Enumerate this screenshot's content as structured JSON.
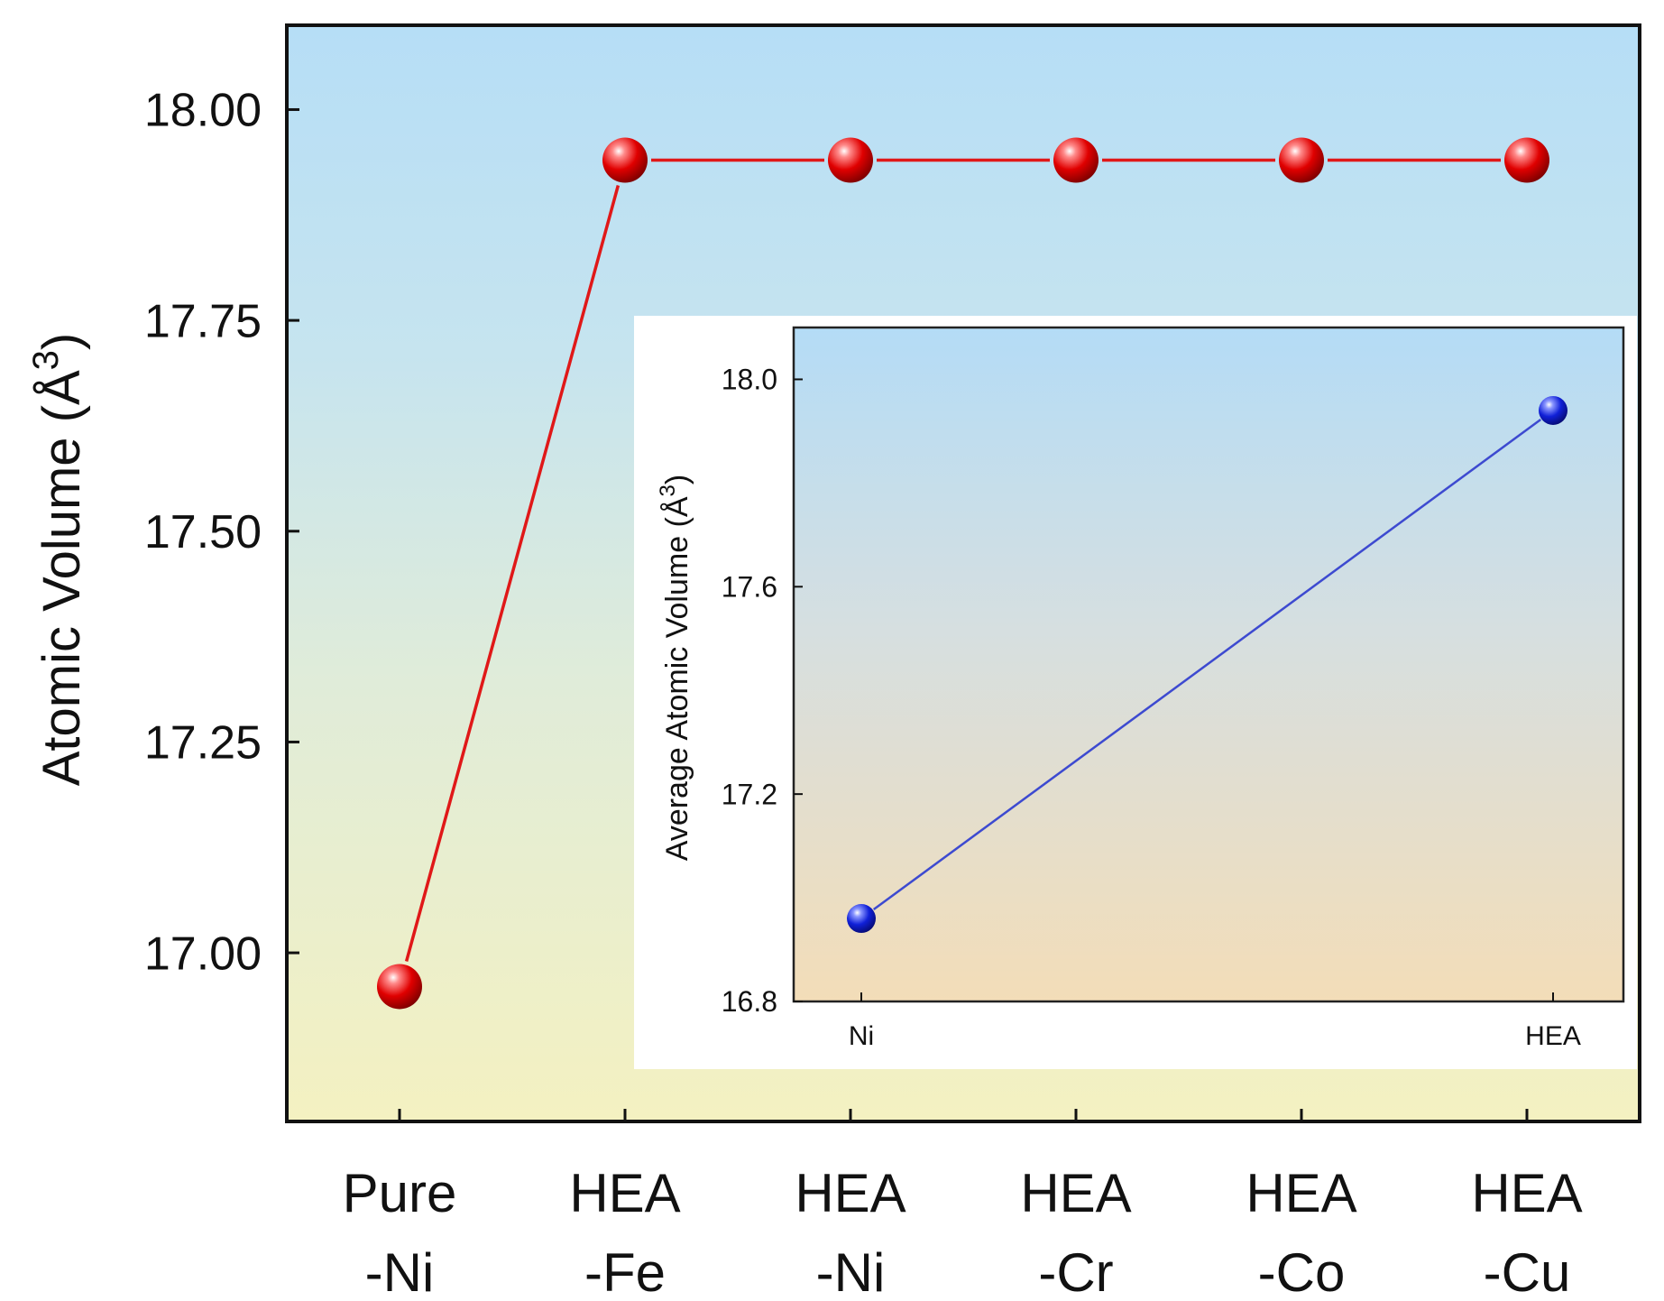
{
  "chart_data": [
    {
      "type": "line",
      "title": "",
      "xlabel": "",
      "ylabel": "Atomic Volume (Å",
      "ylabel_superscript": "3",
      "ylabel_suffix": ")",
      "categories": [
        [
          "Pure",
          "-Ni"
        ],
        [
          "HEA",
          "-Fe"
        ],
        [
          "HEA",
          "-Ni"
        ],
        [
          "HEA",
          "-Cr"
        ],
        [
          "HEA",
          "-Co"
        ],
        [
          "HEA",
          "-Cu"
        ]
      ],
      "values": [
        16.96,
        17.94,
        17.94,
        17.94,
        17.94,
        17.94
      ],
      "ylim": [
        16.8,
        18.1
      ],
      "yticks": [
        17.0,
        17.25,
        17.5,
        17.75,
        18.0
      ],
      "ytick_labels": [
        "17.00",
        "17.25",
        "17.50",
        "17.75",
        "18.00"
      ],
      "marker": "sphere",
      "line_color": "#e01818",
      "marker_color": "#e00000",
      "background": "gradient light blue (top) to pale yellow (bottom)"
    },
    {
      "type": "line",
      "title": "",
      "xlabel": "",
      "ylabel": "Average Atomic Volume (Å",
      "ylabel_superscript": "3",
      "ylabel_suffix": ")",
      "categories": [
        "Ni",
        "HEA"
      ],
      "values": [
        16.96,
        17.94
      ],
      "ylim": [
        16.8,
        18.1
      ],
      "yticks": [
        16.8,
        17.2,
        17.6,
        18.0
      ],
      "ytick_labels": [
        "16.8",
        "17.2",
        "17.6",
        "18.0"
      ],
      "marker": "sphere",
      "line_color": "#3d4ad0",
      "marker_color": "#1020d0",
      "background": "gradient light blue (top) to peach (bottom)"
    }
  ]
}
